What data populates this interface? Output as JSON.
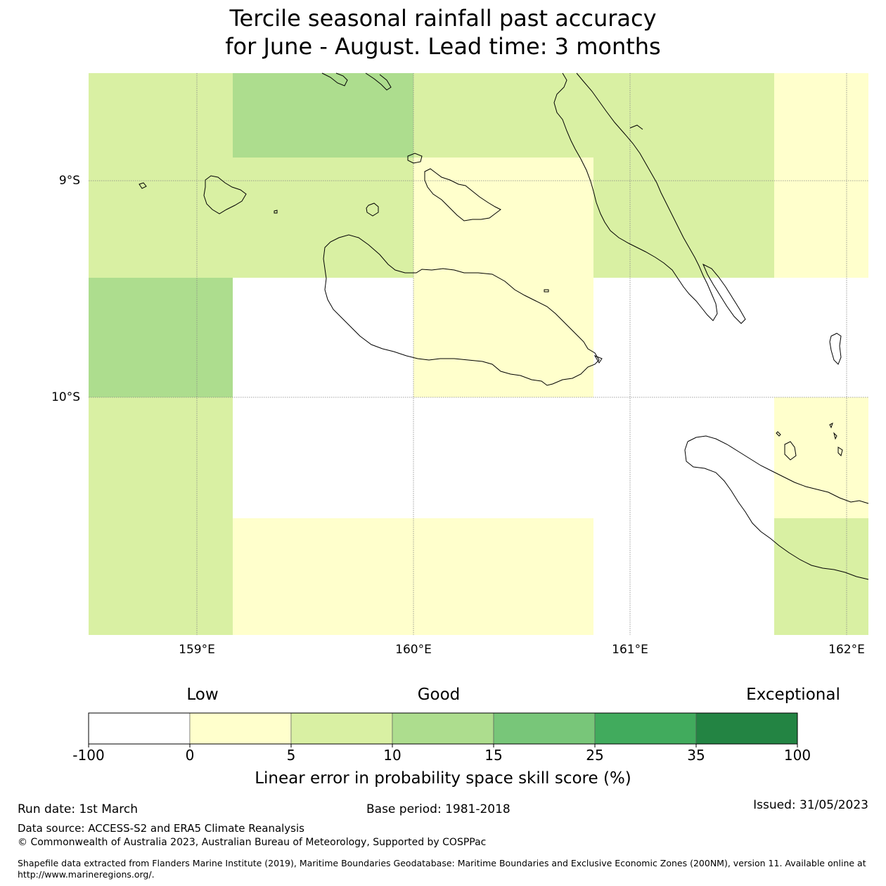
{
  "title": {
    "line1": "Tercile seasonal rainfall past accuracy",
    "line2": "for June - August. Lead time: 3 months"
  },
  "map": {
    "lat_labels": [
      "9°S",
      "10°S"
    ],
    "lon_labels": [
      "159°E",
      "160°E",
      "161°E",
      "162°E"
    ],
    "category_colors": {
      "neg": "#ffffff",
      "c0_5": "#ffffcc",
      "c5_10": "#d9f0a3",
      "c10_15": "#addd8e",
      "c15_25": "#78c679",
      "c25_35": "#41ab5d",
      "c35_100": "#238443"
    },
    "grid_cells": [
      [
        "c5_10",
        "c10_15",
        "c5_10",
        "c5_10",
        "c0_5"
      ],
      [
        "c5_10",
        "c5_10",
        "c0_5",
        "c5_10",
        "c0_5"
      ],
      [
        "c10_15",
        "neg",
        "c0_5",
        "neg",
        "neg"
      ],
      [
        "c5_10",
        "neg",
        "neg",
        "neg",
        "c0_5"
      ],
      [
        "c5_10",
        "c0_5",
        "c0_5",
        "neg",
        "c5_10"
      ]
    ]
  },
  "colorbar": {
    "category_labels": [
      "Low",
      "Good",
      "Exceptional"
    ],
    "colors": [
      "#ffffff",
      "#ffffcc",
      "#d9f0a3",
      "#addd8e",
      "#78c679",
      "#41ab5d",
      "#238443"
    ],
    "ticks": [
      "-100",
      "0",
      "5",
      "10",
      "15",
      "25",
      "35",
      "100"
    ],
    "title": "Linear error in probability space skill score (%)"
  },
  "footer": {
    "run_date": "Run date: 1st March",
    "base_period": "Base period: 1981-2018",
    "issued": "Issued: 31/05/2023",
    "data_source": "Data source: ACCESS-S2 and ERA5 Climate Reanalysis",
    "copyright": "© Commonwealth of Australia 2023, Australian Bureau of Meteorology, Supported by COSPPac",
    "shapefile_line1": "Shapefile data extracted from Flanders Marine Institute (2019), Maritime Boundaries Geodatabase: Maritime Boundaries and Exclusive Economic Zones (200NM), version 11. Available online at",
    "shapefile_line2": "http://www.marineregions.org/."
  }
}
